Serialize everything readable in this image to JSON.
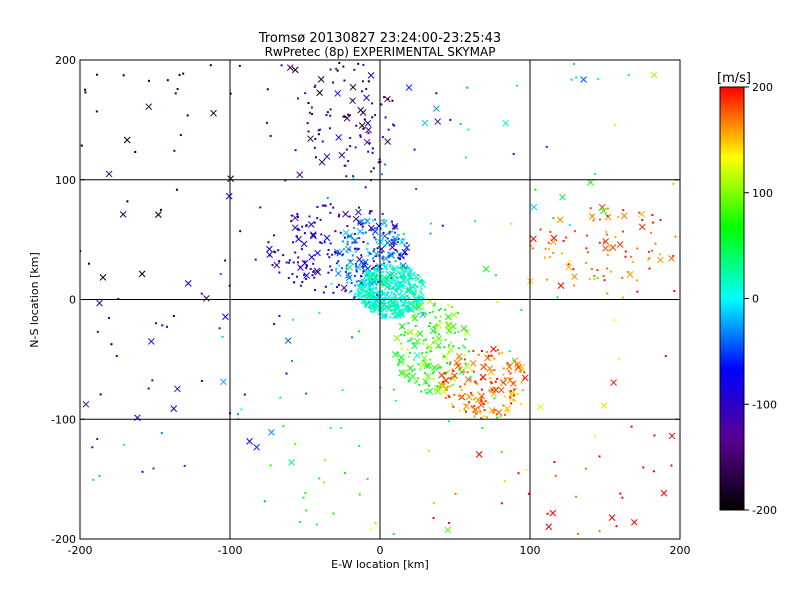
{
  "chart_data": {
    "type": "scatter",
    "title": "Tromsø 20130827 23:24:00-23:25:43",
    "subtitle": "RwPretec (8p) EXPERIMENTAL SKYMAP",
    "xlabel": "E-W location [km]",
    "ylabel": "N-S location [km]",
    "xlim": [
      -200,
      200
    ],
    "ylim": [
      -200,
      200
    ],
    "x_ticks": [
      -200,
      -100,
      0,
      100,
      200
    ],
    "y_ticks": [
      -200,
      -100,
      0,
      100,
      200
    ],
    "x_tick_labels": [
      "-200",
      "-100",
      "0",
      "100",
      "200"
    ],
    "y_tick_labels": [
      "-200",
      "-100",
      "0",
      "100",
      "200"
    ],
    "grid": true,
    "colorbar": {
      "label": "[m/s]",
      "range": [
        -200,
        200
      ],
      "ticks": [
        -200,
        -100,
        0,
        100,
        200
      ],
      "tick_labels": [
        "-200",
        "-100",
        "0",
        "100",
        "200"
      ],
      "colormap": [
        "#000000",
        "#5a0090",
        "#0000ff",
        "#00ffff",
        "#00ff00",
        "#ffff00",
        "#ff0000"
      ]
    },
    "marker_types": [
      "dot",
      "cross"
    ],
    "clusters": [
      {
        "x": [
          -75,
          20
        ],
        "y": [
          5,
          80
        ],
        "v": [
          -160,
          -60
        ],
        "density": "high"
      },
      {
        "x": [
          -30,
          20
        ],
        "y": [
          -5,
          70
        ],
        "v": [
          -60,
          0
        ],
        "density": "high"
      },
      {
        "x": [
          -15,
          30
        ],
        "y": [
          -15,
          30
        ],
        "v": [
          -10,
          40
        ],
        "density": "very high"
      },
      {
        "x": [
          10,
          60
        ],
        "y": [
          -80,
          0
        ],
        "v": [
          40,
          120
        ],
        "density": "high"
      },
      {
        "x": [
          40,
          100
        ],
        "y": [
          -100,
          -40
        ],
        "v": [
          140,
          200
        ],
        "density": "high"
      },
      {
        "x": [
          100,
          200
        ],
        "y": [
          0,
          80
        ],
        "v": [
          150,
          200
        ],
        "density": "medium"
      },
      {
        "x": [
          -50,
          10
        ],
        "y": [
          100,
          200
        ],
        "v": [
          -200,
          -80
        ],
        "density": "medium"
      },
      {
        "x": [
          -200,
          200
        ],
        "y": [
          -200,
          200
        ],
        "v": [
          -200,
          200
        ],
        "density": "low"
      }
    ]
  }
}
